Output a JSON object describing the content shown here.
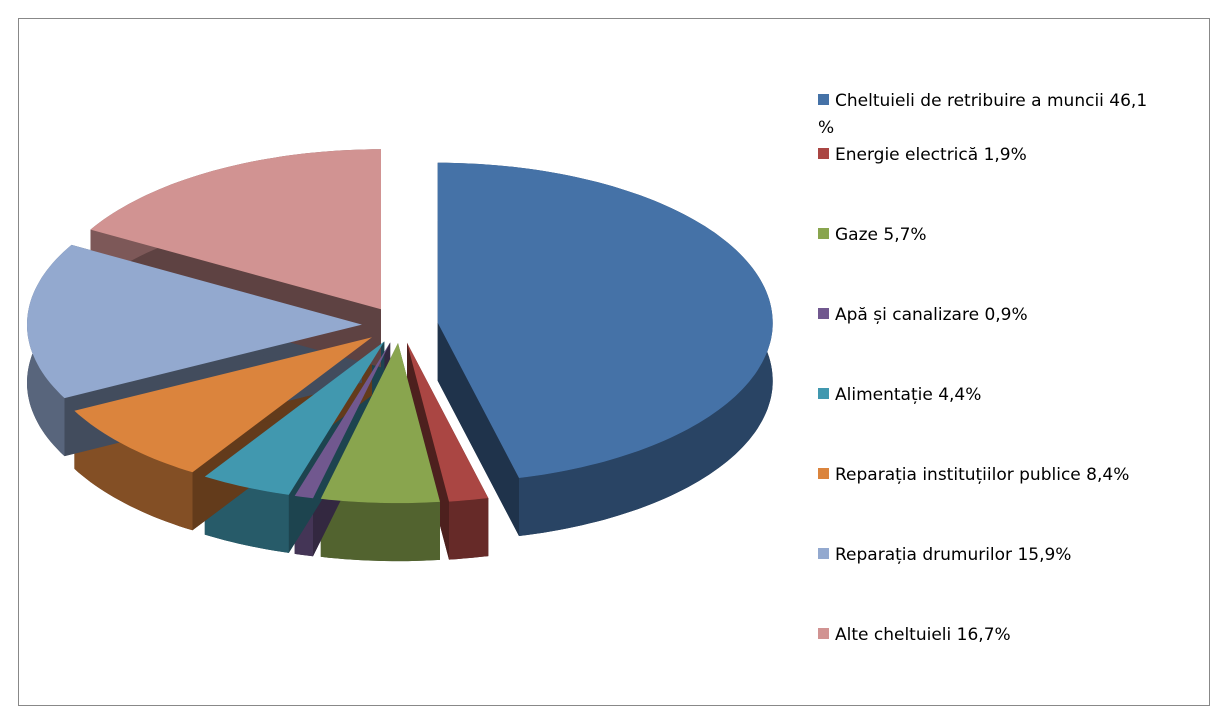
{
  "chart_data": {
    "type": "pie",
    "categories": [
      "Cheltuieli de retribuire a muncii 46,1 %",
      "Energie electrică 1,9%",
      "Gaze 5,7%",
      "Apă și canalizare 0,9%",
      "Alimentație 4,4%",
      "Reparația instituțiilor publice 8,4%",
      "Reparația drumurilor 15,9%",
      "Alte cheltuieli 16,7%"
    ],
    "values": [
      46.1,
      1.9,
      5.7,
      0.9,
      4.4,
      8.4,
      15.9,
      16.7
    ],
    "colors": [
      "#4572a7",
      "#aa4643",
      "#89a54e",
      "#71588f",
      "#4198af",
      "#db843d",
      "#93a9cf",
      "#d19392"
    ],
    "legend": "right"
  }
}
